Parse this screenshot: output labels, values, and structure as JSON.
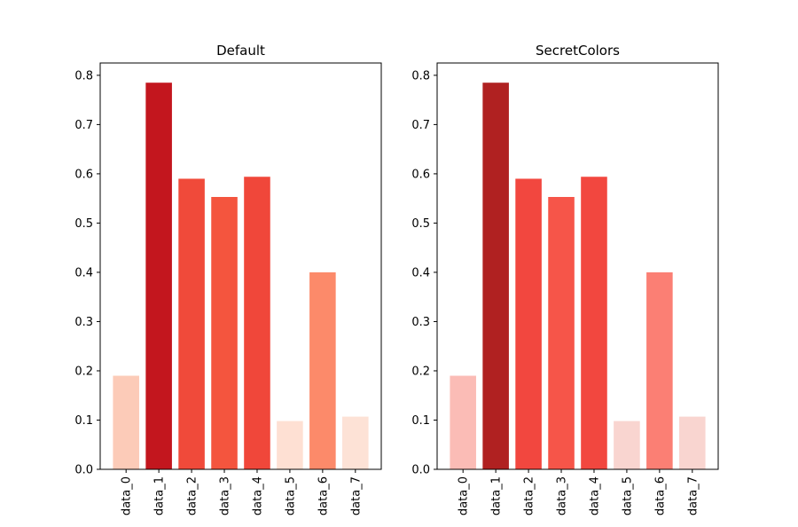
{
  "chart_data": [
    {
      "type": "bar",
      "title": "Default",
      "categories": [
        "data_0",
        "data_1",
        "data_2",
        "data_3",
        "data_4",
        "data_5",
        "data_6",
        "data_7"
      ],
      "values": [
        0.19,
        0.785,
        0.59,
        0.553,
        0.594,
        0.098,
        0.4,
        0.107
      ],
      "colors": [
        "#fccbb8",
        "#c3161e",
        "#f04a3a",
        "#f4553e",
        "#f0473a",
        "#fee0d3",
        "#fc8a6a",
        "#fde2d6"
      ],
      "ylim": [
        0,
        0.825
      ],
      "yticks": [
        0.0,
        0.1,
        0.2,
        0.3,
        0.4,
        0.5,
        0.6,
        0.7,
        0.8
      ],
      "ytick_labels": [
        "0.0",
        "0.1",
        "0.2",
        "0.3",
        "0.4",
        "0.5",
        "0.6",
        "0.7",
        "0.8"
      ],
      "xlabel": "",
      "ylabel": "",
      "grid": false
    },
    {
      "type": "bar",
      "title": "SecretColors",
      "categories": [
        "data_0",
        "data_1",
        "data_2",
        "data_3",
        "data_4",
        "data_5",
        "data_6",
        "data_7"
      ],
      "values": [
        0.19,
        0.785,
        0.59,
        0.553,
        0.594,
        0.098,
        0.4,
        0.107
      ],
      "colors": [
        "#fbbcb6",
        "#b02121",
        "#f2473f",
        "#f65549",
        "#f2473f",
        "#f9d5d0",
        "#fb7f74",
        "#f9d5d0"
      ],
      "ylim": [
        0,
        0.825
      ],
      "yticks": [
        0.0,
        0.1,
        0.2,
        0.3,
        0.4,
        0.5,
        0.6,
        0.7,
        0.8
      ],
      "ytick_labels": [
        "0.0",
        "0.1",
        "0.2",
        "0.3",
        "0.4",
        "0.5",
        "0.6",
        "0.7",
        "0.8"
      ],
      "xlabel": "",
      "ylabel": "",
      "grid": false
    }
  ]
}
